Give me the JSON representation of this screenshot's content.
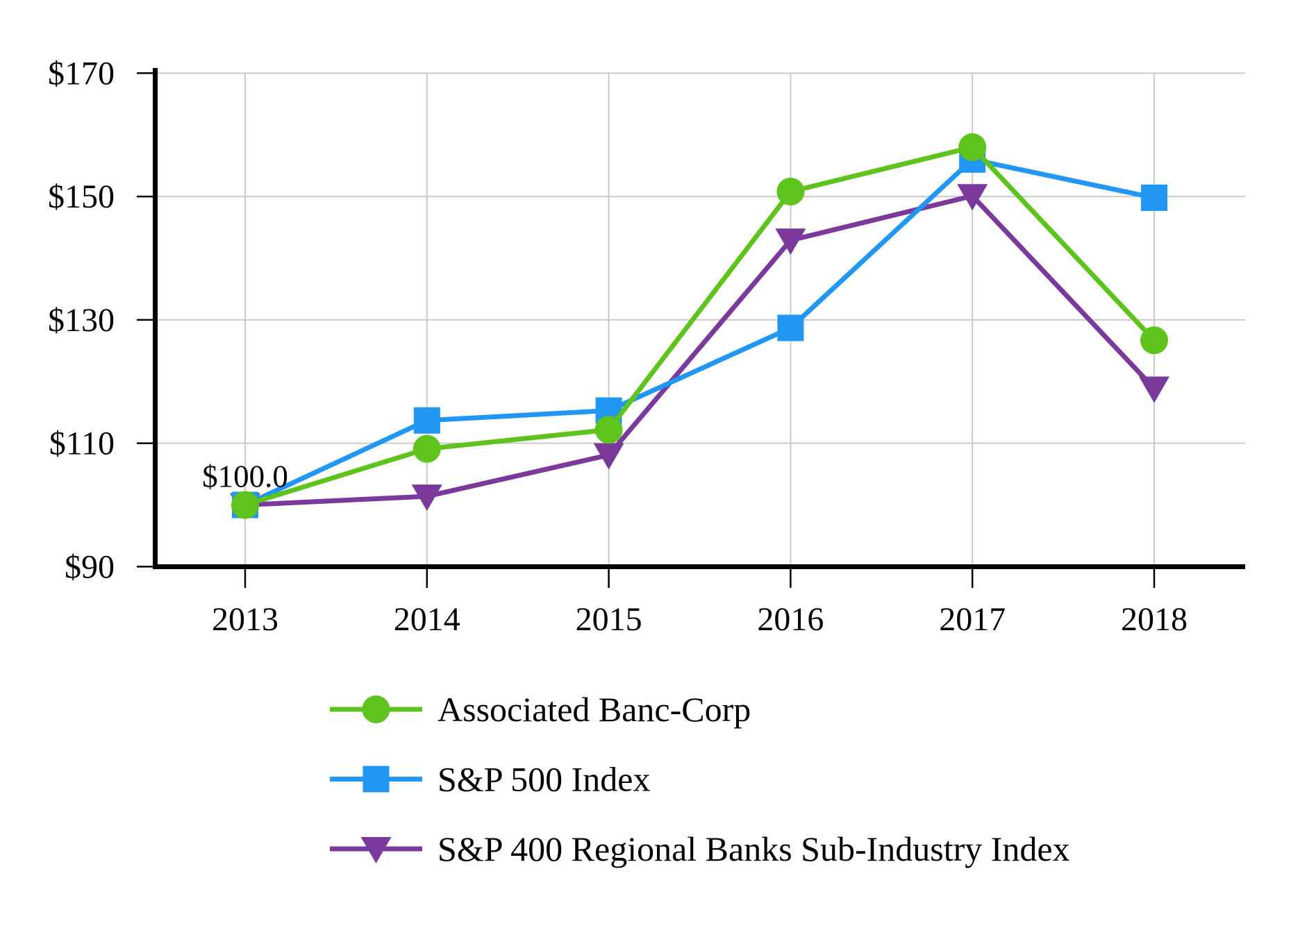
{
  "chart_data": {
    "type": "line",
    "title": "",
    "xlabel": "",
    "ylabel": "",
    "x_categories": [
      "2013",
      "2014",
      "2015",
      "2016",
      "2017",
      "2018"
    ],
    "y_tick_labels": [
      "$90",
      "$110",
      "$130",
      "$150",
      "$170"
    ],
    "y_tick_values": [
      90,
      110,
      130,
      150,
      170
    ],
    "ylim": [
      90,
      170
    ],
    "grid": true,
    "legend_position": "bottom-left",
    "series": [
      {
        "name": "Associated Banc-Corp",
        "marker": "circle",
        "color": "#5FC31E",
        "values": [
          100.0,
          109.1,
          112.2,
          150.8,
          158.0,
          126.7
        ]
      },
      {
        "name": "S&P 500 Index",
        "marker": "square",
        "color": "#2196F3",
        "values": [
          100.0,
          113.7,
          115.3,
          128.7,
          156.0,
          149.8
        ]
      },
      {
        "name": "S&P 400 Regional Banks Sub-Industry Index",
        "marker": "triangle-down",
        "color": "#7B3A9B",
        "values": [
          100.0,
          101.4,
          108.1,
          142.9,
          150.1,
          118.9
        ]
      }
    ],
    "annotation": {
      "text": "$100.0",
      "series_index": 0,
      "point_index": 0
    },
    "colors": {
      "grid": "#C9C9C9",
      "axis": "#000000",
      "text": "#000000",
      "background": "#FFFFFF"
    }
  }
}
